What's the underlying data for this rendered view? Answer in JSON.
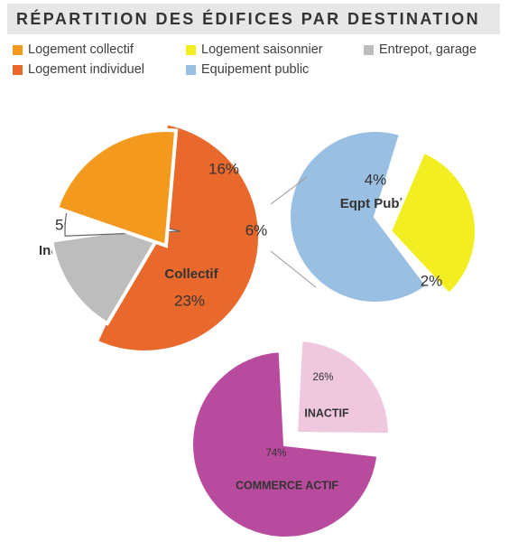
{
  "title": "Répartition des édifices par destination",
  "legend": [
    {
      "label": "Logement collectif",
      "color": "#f39a1e"
    },
    {
      "label": "Logement saisonnier",
      "color": "#f2ee22"
    },
    {
      "label": "Entrepot, garage",
      "color": "#bdbdbd"
    },
    {
      "label": "Logement individuel",
      "color": "#e9692c"
    },
    {
      "label": "Equipement public",
      "color": "#99bfe3"
    }
  ],
  "chart_data": [
    {
      "type": "pie",
      "title": "",
      "slices": [
        {
          "label": "Individuel",
          "percent_label": "56%",
          "value": 56,
          "color": "#e9692c"
        },
        {
          "label": "",
          "percent_label": "16%",
          "value": 16,
          "color": "#bdbdbd"
        },
        {
          "label": "",
          "percent_label": "6%",
          "value": 6,
          "color": "#ffffff"
        },
        {
          "label": "Collectif",
          "percent_label": "23%",
          "value": 23,
          "color": "#f39a1e"
        }
      ]
    },
    {
      "type": "pie",
      "title": "",
      "slices": [
        {
          "label": "Eqpt Public",
          "percent_label": "4%",
          "value": 4,
          "color": "#99bfe3"
        },
        {
          "label": "",
          "percent_label": "2%",
          "value": 2,
          "color": "#f2ee22"
        }
      ]
    },
    {
      "type": "pie",
      "title": "",
      "slices": [
        {
          "label": "INACTIF",
          "percent_label": "26%",
          "value": 26,
          "color": "#f0c8de"
        },
        {
          "label": "COMMERCE ACTIF",
          "percent_label": "74%",
          "value": 74,
          "color": "#b84b9d"
        }
      ]
    }
  ]
}
